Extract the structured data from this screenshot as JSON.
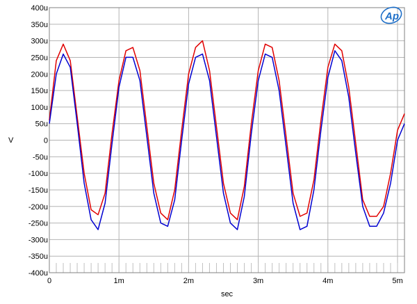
{
  "chart_data": {
    "type": "line",
    "xlabel": "sec",
    "ylabel": "V",
    "xlim": [
      0,
      0.0051
    ],
    "ylim": [
      -0.0004,
      0.0004
    ],
    "x_ticks": [
      {
        "value": 0,
        "label": "0"
      },
      {
        "value": 0.001,
        "label": "1m"
      },
      {
        "value": 0.002,
        "label": "2m"
      },
      {
        "value": 0.003,
        "label": "3m"
      },
      {
        "value": 0.004,
        "label": "4m"
      },
      {
        "value": 0.005,
        "label": "5m"
      }
    ],
    "y_ticks": [
      {
        "value": 0.0004,
        "label": "400u"
      },
      {
        "value": 0.00035,
        "label": "350u"
      },
      {
        "value": 0.0003,
        "label": "300u"
      },
      {
        "value": 0.00025,
        "label": "250u"
      },
      {
        "value": 0.0002,
        "label": "200u"
      },
      {
        "value": 0.00015,
        "label": "150u"
      },
      {
        "value": 0.0001,
        "label": "100u"
      },
      {
        "value": 5e-05,
        "label": "50u"
      },
      {
        "value": 0,
        "label": "0"
      },
      {
        "value": -5e-05,
        "label": "-50u"
      },
      {
        "value": -0.0001,
        "label": "-100u"
      },
      {
        "value": -0.00015,
        "label": "-150u"
      },
      {
        "value": -0.0002,
        "label": "-200u"
      },
      {
        "value": -0.00025,
        "label": "-250u"
      },
      {
        "value": -0.0003,
        "label": "-300u"
      },
      {
        "value": -0.00035,
        "label": "-350u"
      },
      {
        "value": -0.0004,
        "label": "-400u"
      }
    ],
    "grid": true,
    "series": [
      {
        "color": "#e00000",
        "x": [
          0,
          0.0001,
          0.0002,
          0.0003,
          0.0004,
          0.0005,
          0.0006,
          0.0007,
          0.0008,
          0.0009,
          0.001,
          0.0011,
          0.0012,
          0.0013,
          0.0014,
          0.0015,
          0.0016,
          0.0017,
          0.0018,
          0.0019,
          0.002,
          0.0021,
          0.0022,
          0.0023,
          0.0024,
          0.0025,
          0.0026,
          0.0027,
          0.0028,
          0.0029,
          0.003,
          0.0031,
          0.0032,
          0.0033,
          0.0034,
          0.0035,
          0.0036,
          0.0037,
          0.0038,
          0.0039,
          0.004,
          0.0041,
          0.0042,
          0.0043,
          0.0044,
          0.0045,
          0.0046,
          0.0047,
          0.0048,
          0.0049,
          0.005,
          0.0051
        ],
        "y": [
          6e-05,
          0.00024,
          0.00029,
          0.00024,
          7e-05,
          -0.0001,
          -0.00021,
          -0.000225,
          -0.00016,
          2e-05,
          0.00018,
          0.00027,
          0.00028,
          0.00021,
          4e-05,
          -0.00013,
          -0.00022,
          -0.00024,
          -0.00015,
          3e-05,
          0.0002,
          0.00028,
          0.0003,
          0.00021,
          4e-05,
          -0.00013,
          -0.00022,
          -0.00024,
          -0.00014,
          5e-05,
          0.00021,
          0.00029,
          0.00028,
          0.00018,
          1e-05,
          -0.00016,
          -0.00023,
          -0.00022,
          -0.00012,
          6e-05,
          0.00022,
          0.00029,
          0.00027,
          0.00016,
          -1e-05,
          -0.00018,
          -0.00023,
          -0.00023,
          -0.0002,
          -0.0001,
          3e-05,
          8e-05
        ]
      },
      {
        "color": "#0000d0",
        "x": [
          0,
          0.0001,
          0.0002,
          0.0003,
          0.0004,
          0.0005,
          0.0006,
          0.0007,
          0.0008,
          0.0009,
          0.001,
          0.0011,
          0.0012,
          0.0013,
          0.0014,
          0.0015,
          0.0016,
          0.0017,
          0.0018,
          0.0019,
          0.002,
          0.0021,
          0.0022,
          0.0023,
          0.0024,
          0.0025,
          0.0026,
          0.0027,
          0.0028,
          0.0029,
          0.003,
          0.0031,
          0.0032,
          0.0033,
          0.0034,
          0.0035,
          0.0036,
          0.0037,
          0.0038,
          0.0039,
          0.004,
          0.0041,
          0.0042,
          0.0043,
          0.0044,
          0.0045,
          0.0046,
          0.0047,
          0.0048,
          0.0049,
          0.005,
          0.0051
        ],
        "y": [
          5e-05,
          0.0002,
          0.00026,
          0.00022,
          5e-05,
          -0.00013,
          -0.00024,
          -0.00027,
          -0.00019,
          -1e-05,
          0.00016,
          0.00025,
          0.00025,
          0.00018,
          1e-05,
          -0.00016,
          -0.00025,
          -0.00026,
          -0.00018,
          0,
          0.00017,
          0.00025,
          0.00026,
          0.00018,
          1e-05,
          -0.00016,
          -0.00025,
          -0.00027,
          -0.00017,
          2e-05,
          0.00018,
          0.00026,
          0.00025,
          0.00015,
          -2e-05,
          -0.00019,
          -0.00027,
          -0.00026,
          -0.00015,
          3e-05,
          0.00019,
          0.00027,
          0.00024,
          0.00013,
          -4e-05,
          -0.0002,
          -0.00026,
          -0.00026,
          -0.00022,
          -0.00013,
          0,
          5e-05
        ]
      }
    ]
  },
  "logo": {
    "text": "Ap",
    "color": "#1e6fc8"
  }
}
